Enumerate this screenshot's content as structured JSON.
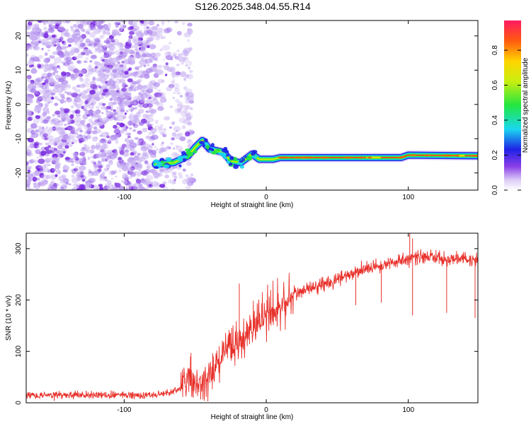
{
  "title": "S126.2025.348.04.55.R14",
  "colors": {
    "background": "#ffffff",
    "snr_line": "#e8302a",
    "noise": "#7a2be0",
    "noise_light": "#c8b0f2",
    "band_core": "#e8302a"
  },
  "chart_data": [
    {
      "type": "heatmap",
      "title": "S126.2025.348.04.55.R14",
      "xlabel": "Height of straight line (km)",
      "ylabel": "Frequency (Hz)",
      "xlim": [
        -169,
        149
      ],
      "ylim": [
        -25,
        24.5
      ],
      "x_ticks": [
        -100,
        0,
        100
      ],
      "y_ticks": [
        -20,
        -10,
        0,
        10,
        20
      ],
      "colorbar": {
        "label": "Normalized spectral amplitude",
        "range": [
          0,
          0.97
        ],
        "ticks": [
          0.0,
          0.2,
          0.4,
          0.6,
          0.8
        ],
        "tick_labels": [
          "0.0",
          "0.2",
          "0.4",
          "0.6",
          "0.8"
        ],
        "colormap": "rainbow"
      },
      "noise_region_x": [
        -169,
        -60
      ],
      "signal_band": {
        "description": "narrow high-amplitude band near -15.5 Hz",
        "x_start": -78,
        "x_end": 149,
        "trace": [
          {
            "x": -78,
            "y": -17.5
          },
          {
            "x": -65,
            "y": -17.0
          },
          {
            "x": -55,
            "y": -15.0
          },
          {
            "x": -50,
            "y": -12.5
          },
          {
            "x": -45,
            "y": -10.5
          },
          {
            "x": -40,
            "y": -13.0
          },
          {
            "x": -30,
            "y": -14.0
          },
          {
            "x": -25,
            "y": -16.5
          },
          {
            "x": -18,
            "y": -17.0
          },
          {
            "x": -10,
            "y": -14.5
          },
          {
            "x": -5,
            "y": -16.0
          },
          {
            "x": 5,
            "y": -16.0
          },
          {
            "x": 10,
            "y": -15.5
          },
          {
            "x": 40,
            "y": -15.5
          },
          {
            "x": 95,
            "y": -15.5
          },
          {
            "x": 100,
            "y": -14.8
          },
          {
            "x": 149,
            "y": -15.0
          }
        ]
      }
    },
    {
      "type": "line",
      "xlabel": "Height of straight line (km)",
      "ylabel": "SNR (10 * v/v)",
      "xlim": [
        -169,
        149
      ],
      "ylim": [
        0,
        330
      ],
      "x_ticks": [
        -100,
        0,
        100
      ],
      "y_ticks": [
        0,
        100,
        200,
        300
      ],
      "series": [
        {
          "name": "SNR",
          "trend": {
            "x": [
              -169,
              -80,
              -70,
              -60,
              -55,
              -50,
              -40,
              -30,
              -20,
              -10,
              0,
              10,
              20,
              30,
              40,
              50,
              60,
              70,
              80,
              90,
              100,
              110,
              120,
              130,
              140,
              149
            ],
            "y": [
              15,
              15,
              18,
              28,
              50,
              35,
              45,
              95,
              115,
              140,
              165,
              185,
              210,
              225,
              232,
              240,
              250,
              260,
              268,
              275,
              280,
              285,
              282,
              278,
              280,
              275
            ]
          },
          "spikes": [
            {
              "x": 101,
              "y": 330
            },
            {
              "x": 103,
              "y": 320
            },
            {
              "x": 103,
              "y": 170
            },
            {
              "x": 81,
              "y": 195
            },
            {
              "x": 127,
              "y": 175
            },
            {
              "x": 147,
              "y": 165
            },
            {
              "x": -53,
              "y": 97
            },
            {
              "x": -19,
              "y": 232
            },
            {
              "x": 63,
              "y": 190
            }
          ]
        }
      ]
    }
  ]
}
